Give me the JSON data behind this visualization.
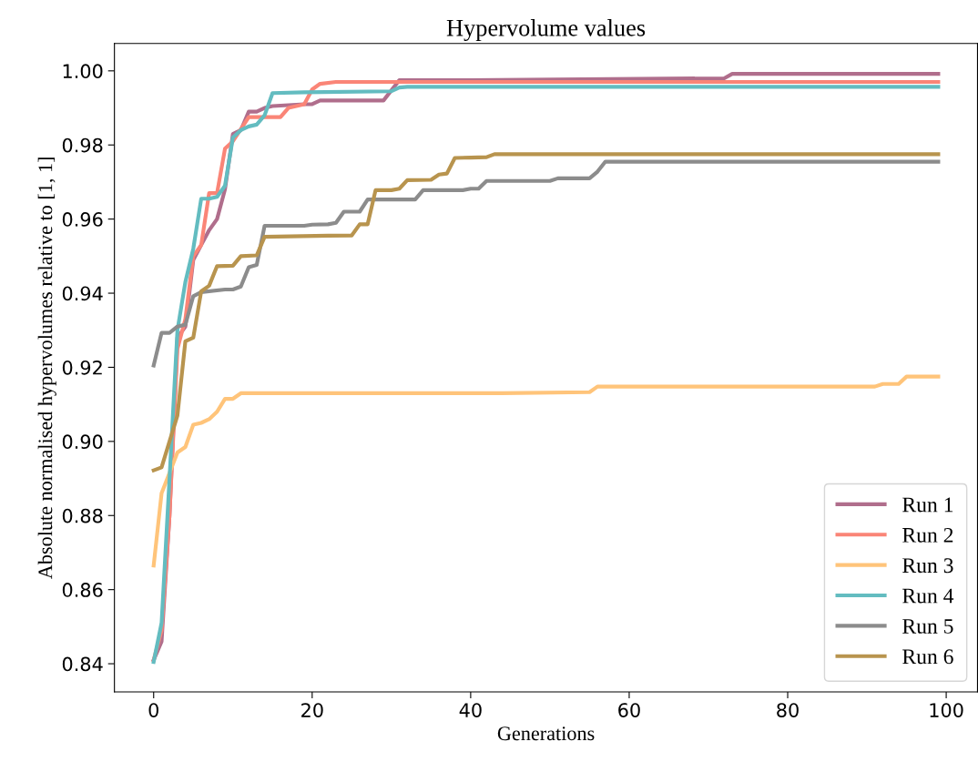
{
  "chart_data": {
    "type": "line",
    "title": "Hypervolume values",
    "xlabel": "Generations",
    "ylabel": "Absolute normalised hypervolumes relative to [1, 1]",
    "xlim": [
      -4.95,
      103.95
    ],
    "xticks": [
      0,
      20,
      40,
      60,
      80,
      100
    ],
    "ylim": [
      0.8324,
      1.0074
    ],
    "yticks": [
      {
        "value": 0.84,
        "label": "0.84"
      },
      {
        "value": 0.86,
        "label": "0.86"
      },
      {
        "value": 0.88,
        "label": "0.88"
      },
      {
        "value": 0.9,
        "label": "0.90"
      },
      {
        "value": 0.92,
        "label": "0.92"
      },
      {
        "value": 0.94,
        "label": "0.94"
      },
      {
        "value": 0.96,
        "label": "0.96"
      },
      {
        "value": 0.98,
        "label": "0.98"
      },
      {
        "value": 1.0,
        "label": "1.00"
      }
    ],
    "grid": false,
    "legend": "bottom right",
    "marker": "none",
    "line_style": "solid",
    "series": [
      {
        "name": "Run 1",
        "color": "#b06e8c",
        "x": [
          0,
          1,
          2,
          3,
          4,
          5,
          6,
          7,
          8,
          9,
          10,
          11,
          12,
          13,
          14,
          15,
          19,
          20,
          21,
          29,
          31,
          40,
          72,
          73,
          99
        ],
        "values": [
          0.841,
          0.846,
          0.88,
          0.928,
          0.931,
          0.949,
          0.953,
          0.957,
          0.96,
          0.968,
          0.983,
          0.984,
          0.989,
          0.989,
          0.99,
          0.9905,
          0.991,
          0.991,
          0.992,
          0.992,
          0.9975,
          0.9975,
          0.998,
          0.9992,
          0.9992
        ]
      },
      {
        "name": "Run 2",
        "color": "#fa8577",
        "x": [
          0,
          1,
          2,
          3,
          4,
          5,
          6,
          7,
          8,
          9,
          10,
          12,
          16,
          17,
          19,
          20,
          21,
          23,
          99
        ],
        "values": [
          0.841,
          0.849,
          0.88,
          0.925,
          0.933,
          0.95,
          0.953,
          0.967,
          0.967,
          0.979,
          0.981,
          0.9875,
          0.9875,
          0.99,
          0.991,
          0.995,
          0.9965,
          0.997,
          0.997
        ]
      },
      {
        "name": "Run 3",
        "color": "#ffc47a",
        "x": [
          0,
          1,
          2,
          3,
          4,
          5,
          6,
          7,
          8,
          9,
          10,
          11,
          44,
          55,
          56,
          91,
          92,
          94,
          95,
          99
        ],
        "values": [
          0.8665,
          0.886,
          0.8915,
          0.897,
          0.8985,
          0.9045,
          0.905,
          0.906,
          0.908,
          0.9115,
          0.9115,
          0.913,
          0.913,
          0.9133,
          0.9148,
          0.9148,
          0.9155,
          0.9155,
          0.9175,
          0.9175
        ]
      },
      {
        "name": "Run 4",
        "color": "#63bcc0",
        "x": [
          0,
          1,
          2,
          3,
          4,
          5,
          6,
          7,
          8,
          9,
          10,
          11,
          12,
          13,
          14,
          15,
          19,
          30,
          31,
          32,
          99
        ],
        "values": [
          0.8405,
          0.851,
          0.89,
          0.93,
          0.943,
          0.952,
          0.9655,
          0.9655,
          0.966,
          0.969,
          0.982,
          0.984,
          0.985,
          0.9855,
          0.988,
          0.994,
          0.9942,
          0.9945,
          0.9955,
          0.9957,
          0.9957
        ]
      },
      {
        "name": "Run 5",
        "color": "#8c8c8c",
        "x": [
          0,
          1,
          2,
          3,
          4,
          5,
          6,
          9,
          10,
          11,
          12,
          13,
          14,
          19,
          20,
          22,
          23,
          24,
          26,
          27,
          33,
          34,
          39,
          40,
          41,
          42,
          50,
          51,
          55,
          56,
          57,
          99
        ],
        "values": [
          0.9205,
          0.9293,
          0.9293,
          0.931,
          0.9315,
          0.9392,
          0.9403,
          0.941,
          0.941,
          0.9418,
          0.947,
          0.9476,
          0.9582,
          0.9582,
          0.9585,
          0.9586,
          0.959,
          0.962,
          0.962,
          0.9653,
          0.9653,
          0.9678,
          0.9678,
          0.9682,
          0.9682,
          0.9703,
          0.9703,
          0.971,
          0.971,
          0.9728,
          0.9755,
          0.9755
        ]
      },
      {
        "name": "Run 6",
        "color": "#b8944e",
        "x": [
          0,
          1,
          2,
          3,
          4,
          5,
          6,
          7,
          8,
          10,
          11,
          13,
          14,
          22,
          25,
          26,
          27,
          28,
          30,
          31,
          32,
          35,
          36,
          37,
          38,
          40,
          42,
          43,
          99
        ],
        "values": [
          0.8922,
          0.893,
          0.9,
          0.907,
          0.927,
          0.928,
          0.9405,
          0.942,
          0.9473,
          0.9474,
          0.95,
          0.9502,
          0.9552,
          0.9555,
          0.9556,
          0.9586,
          0.9586,
          0.9678,
          0.9678,
          0.9682,
          0.9705,
          0.9706,
          0.972,
          0.9723,
          0.9765,
          0.9766,
          0.9767,
          0.9775,
          0.9775
        ]
      }
    ]
  }
}
